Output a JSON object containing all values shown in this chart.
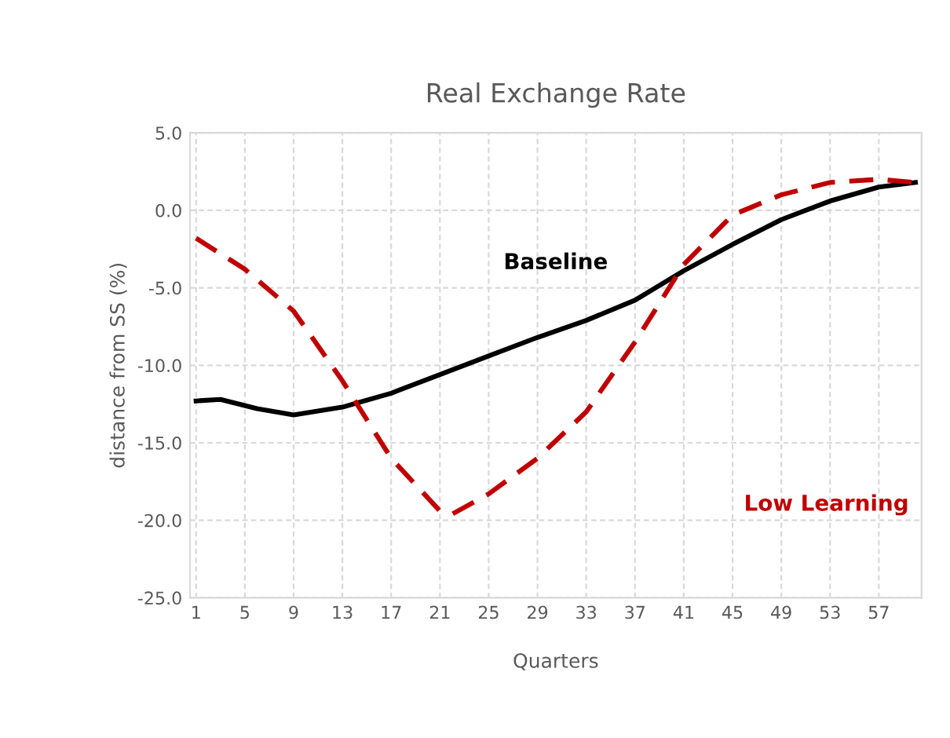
{
  "chart_data": {
    "type": "line",
    "title": "Real Exchange Rate",
    "xlabel": "Quarters",
    "ylabel": "distance from SS (%)",
    "xlim": [
      0.5,
      60.5
    ],
    "xticks": [
      1,
      5,
      9,
      13,
      17,
      21,
      25,
      29,
      33,
      37,
      41,
      45,
      49,
      53,
      57
    ],
    "ylim": [
      -25,
      5
    ],
    "yticks": [
      {
        "value": 5,
        "label": "5.0"
      },
      {
        "value": 0,
        "label": "0.0"
      },
      {
        "value": -5,
        "label": "-5.0"
      },
      {
        "value": -10,
        "label": "-10.0"
      },
      {
        "value": -15,
        "label": "-15.0"
      },
      {
        "value": -20,
        "label": "-20.0"
      },
      {
        "value": -25,
        "label": "-25.0"
      }
    ],
    "grid": true,
    "legend": false,
    "marker": "none",
    "series": [
      {
        "name": "Baseline",
        "color": "#000000",
        "line_style": "solid",
        "x": [
          1,
          3,
          6,
          9,
          13,
          17,
          21,
          25,
          29,
          33,
          37,
          41,
          45,
          49,
          53,
          57,
          60
        ],
        "values": [
          -12.3,
          -12.2,
          -12.8,
          -13.2,
          -12.7,
          -11.8,
          -10.6,
          -9.4,
          -8.2,
          -7.1,
          -5.8,
          -3.9,
          -2.2,
          -0.6,
          0.6,
          1.5,
          1.8
        ]
      },
      {
        "name": "Low Learning",
        "color": "#c00000",
        "line_style": "dashed",
        "x": [
          1,
          5,
          9,
          13,
          17,
          21,
          22,
          25,
          29,
          33,
          37,
          41,
          45,
          49,
          53,
          57,
          60
        ],
        "values": [
          -1.8,
          -3.8,
          -6.5,
          -11.0,
          -16.0,
          -19.4,
          -19.6,
          -18.3,
          -16.0,
          -13.0,
          -8.5,
          -3.5,
          -0.3,
          1.0,
          1.8,
          2.0,
          1.8
        ]
      }
    ]
  }
}
